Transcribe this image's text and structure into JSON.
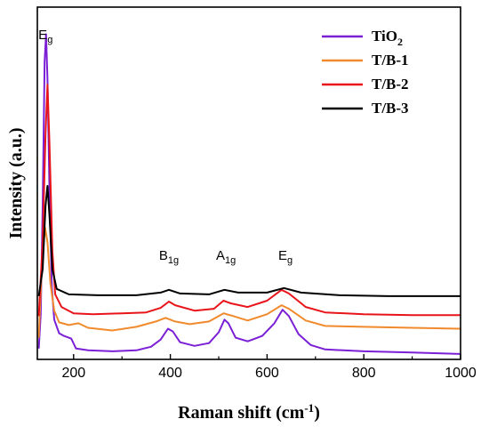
{
  "chart_data": {
    "type": "line",
    "xlabel": {
      "main": "Raman shift (cm",
      "sup": "-1",
      "close": ")"
    },
    "ylabel": "Intensity (a.u.)",
    "xlim": [
      125,
      1000
    ],
    "x_ticks": [
      200,
      400,
      600,
      800,
      1000
    ],
    "y_ticks_labeled": false,
    "grid": false,
    "legend_position": "top-right",
    "peak_labels": [
      {
        "base": "E",
        "sub": "g",
        "x": 142
      },
      {
        "base": "B",
        "sub": "1g",
        "x": 397
      },
      {
        "base": "A",
        "sub": "1g",
        "x": 515
      },
      {
        "base": "E",
        "sub": "g",
        "x": 638
      }
    ],
    "series": [
      {
        "name": "TiO",
        "name_sub": "2",
        "color": "#7a1fd6",
        "points": [
          [
            128,
            0.6
          ],
          [
            132,
            2.5
          ],
          [
            136,
            8.5
          ],
          [
            140,
            16.5
          ],
          [
            143,
            18.0
          ],
          [
            146,
            15.5
          ],
          [
            150,
            9.5
          ],
          [
            155,
            4.0
          ],
          [
            160,
            2.2
          ],
          [
            170,
            1.45
          ],
          [
            180,
            1.3
          ],
          [
            195,
            1.15
          ],
          [
            205,
            0.6
          ],
          [
            230,
            0.5
          ],
          [
            280,
            0.45
          ],
          [
            330,
            0.5
          ],
          [
            360,
            0.7
          ],
          [
            380,
            1.1
          ],
          [
            395,
            1.7
          ],
          [
            405,
            1.55
          ],
          [
            420,
            0.95
          ],
          [
            450,
            0.75
          ],
          [
            480,
            0.9
          ],
          [
            500,
            1.5
          ],
          [
            512,
            2.2
          ],
          [
            520,
            2.0
          ],
          [
            535,
            1.2
          ],
          [
            560,
            1.0
          ],
          [
            590,
            1.3
          ],
          [
            615,
            2.0
          ],
          [
            632,
            2.75
          ],
          [
            645,
            2.4
          ],
          [
            665,
            1.4
          ],
          [
            690,
            0.8
          ],
          [
            720,
            0.55
          ],
          [
            800,
            0.45
          ],
          [
            900,
            0.38
          ],
          [
            1000,
            0.3
          ]
        ]
      },
      {
        "name": "T/B-1",
        "color": "#f08a2c",
        "points": [
          [
            128,
            1.2
          ],
          [
            135,
            5.5
          ],
          [
            141,
            7.3
          ],
          [
            146,
            6.5
          ],
          [
            152,
            4.2
          ],
          [
            160,
            2.7
          ],
          [
            170,
            2.05
          ],
          [
            190,
            1.9
          ],
          [
            210,
            2.0
          ],
          [
            230,
            1.75
          ],
          [
            280,
            1.6
          ],
          [
            330,
            1.8
          ],
          [
            370,
            2.1
          ],
          [
            390,
            2.3
          ],
          [
            410,
            2.1
          ],
          [
            440,
            1.95
          ],
          [
            480,
            2.1
          ],
          [
            510,
            2.55
          ],
          [
            530,
            2.4
          ],
          [
            560,
            2.15
          ],
          [
            600,
            2.5
          ],
          [
            630,
            3.0
          ],
          [
            645,
            2.8
          ],
          [
            680,
            2.15
          ],
          [
            720,
            1.85
          ],
          [
            800,
            1.8
          ],
          [
            900,
            1.75
          ],
          [
            1000,
            1.7
          ]
        ]
      },
      {
        "name": "T/B-2",
        "color": "#e8141a",
        "points": [
          [
            128,
            2.4
          ],
          [
            136,
            6.5
          ],
          [
            142,
            12.5
          ],
          [
            146,
            15.2
          ],
          [
            150,
            12.0
          ],
          [
            156,
            6.0
          ],
          [
            162,
            3.6
          ],
          [
            175,
            2.9
          ],
          [
            200,
            2.55
          ],
          [
            240,
            2.5
          ],
          [
            300,
            2.55
          ],
          [
            350,
            2.6
          ],
          [
            380,
            2.85
          ],
          [
            397,
            3.2
          ],
          [
            410,
            3.0
          ],
          [
            450,
            2.7
          ],
          [
            490,
            2.8
          ],
          [
            510,
            3.25
          ],
          [
            525,
            3.1
          ],
          [
            560,
            2.9
          ],
          [
            600,
            3.25
          ],
          [
            630,
            3.85
          ],
          [
            645,
            3.65
          ],
          [
            680,
            2.9
          ],
          [
            720,
            2.6
          ],
          [
            800,
            2.5
          ],
          [
            900,
            2.45
          ],
          [
            1000,
            2.45
          ]
        ]
      },
      {
        "name": "T/B-3",
        "color": "#000000",
        "points": [
          [
            128,
            3.5
          ],
          [
            136,
            5.0
          ],
          [
            142,
            8.5
          ],
          [
            146,
            9.6
          ],
          [
            150,
            8.0
          ],
          [
            156,
            5.0
          ],
          [
            165,
            3.9
          ],
          [
            190,
            3.6
          ],
          [
            250,
            3.55
          ],
          [
            330,
            3.55
          ],
          [
            380,
            3.7
          ],
          [
            397,
            3.85
          ],
          [
            420,
            3.65
          ],
          [
            480,
            3.6
          ],
          [
            512,
            3.85
          ],
          [
            540,
            3.7
          ],
          [
            600,
            3.7
          ],
          [
            635,
            3.95
          ],
          [
            670,
            3.7
          ],
          [
            750,
            3.55
          ],
          [
            850,
            3.5
          ],
          [
            1000,
            3.5
          ]
        ]
      }
    ]
  }
}
